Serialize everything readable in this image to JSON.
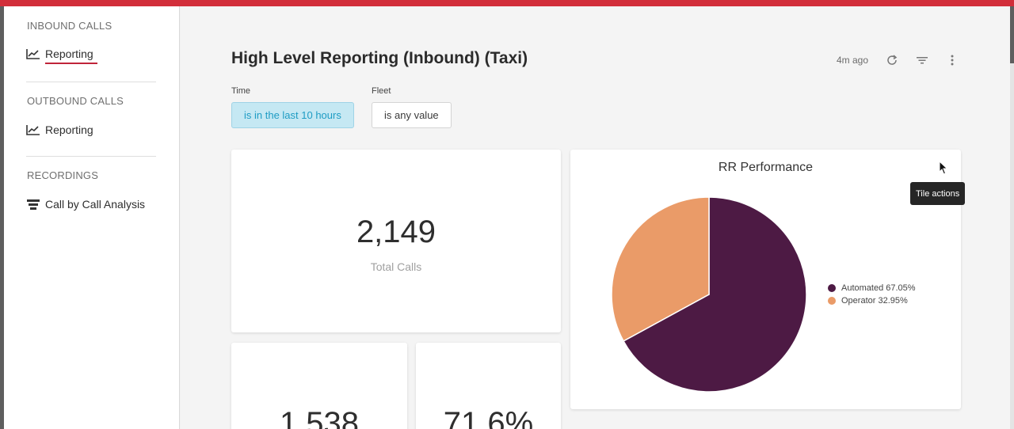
{
  "sidebar": {
    "sections": [
      {
        "title": "INBOUND CALLS",
        "items": [
          {
            "label": "Reporting",
            "icon": "chart-line-icon",
            "active": true
          }
        ]
      },
      {
        "title": "OUTBOUND CALLS",
        "items": [
          {
            "label": "Reporting",
            "icon": "chart-line-icon",
            "active": false
          }
        ]
      },
      {
        "title": "RECORDINGS",
        "items": [
          {
            "label": "Call by Call Analysis",
            "icon": "stack-icon",
            "active": false
          }
        ]
      }
    ]
  },
  "header": {
    "title": "High Level Reporting (Inbound) (Taxi)",
    "updated": "4m ago",
    "icons": [
      "refresh-icon",
      "filter-icon",
      "more-vert-icon"
    ]
  },
  "filters": [
    {
      "label": "Time",
      "value": "is in the last 10 hours"
    },
    {
      "label": "Fleet",
      "value": "is any value"
    }
  ],
  "tiles": {
    "total_calls": {
      "value": "2,149",
      "label": "Total Calls"
    },
    "tile_a": {
      "value": "1,538"
    },
    "tile_b": {
      "value": "71.6%"
    }
  },
  "rr_performance": {
    "title": "RR Performance",
    "legend": [
      {
        "label": "Automated 67.05%",
        "color": "#4d1a44"
      },
      {
        "label": "Operator 32.95%",
        "color": "#ea9b68"
      }
    ]
  },
  "chart_data": {
    "type": "pie",
    "title": "RR Performance",
    "slices": [
      {
        "name": "Automated",
        "value": 67.05,
        "color": "#4d1a44"
      },
      {
        "name": "Operator",
        "value": 32.95,
        "color": "#ea9b68"
      }
    ],
    "legend_position": "right"
  },
  "tooltip": {
    "text": "Tile actions"
  },
  "colors": {
    "accent": "#d22e3a",
    "active_underline": "#c0243a",
    "chip_time_bg": "#c5e8f3",
    "chip_time_text": "#1e9cc4"
  }
}
